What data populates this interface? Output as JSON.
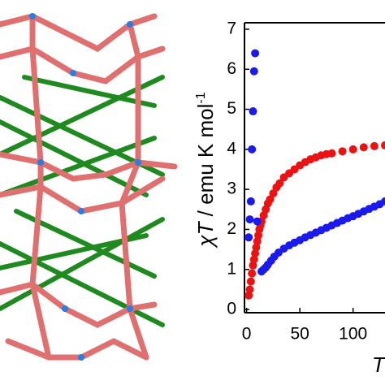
{
  "chart_data": {
    "type": "scatter",
    "ylabel": {
      "symbol": "χT",
      "text": " / emu K mol",
      "sup": "-1"
    },
    "xlabel": "T",
    "xlim": [
      -2,
      130
    ],
    "ylim": [
      0,
      7
    ],
    "xticks": [
      0,
      50,
      100
    ],
    "yticks": [
      0,
      1,
      2,
      3,
      4,
      5,
      6,
      7
    ],
    "series": [
      {
        "color": "#ee1111",
        "x": [
          2,
          3,
          4,
          5,
          6,
          7,
          8,
          9,
          10,
          11,
          12,
          13,
          14,
          16,
          18,
          20,
          22,
          25,
          28,
          31,
          35,
          40,
          45,
          50,
          55,
          60,
          65,
          70,
          75,
          80,
          90,
          100,
          110,
          120,
          130
        ],
        "values": [
          0.35,
          0.5,
          0.7,
          0.9,
          1.1,
          1.25,
          1.4,
          1.55,
          1.7,
          1.85,
          2.0,
          2.1,
          2.2,
          2.35,
          2.5,
          2.65,
          2.75,
          2.9,
          3.05,
          3.15,
          3.3,
          3.4,
          3.5,
          3.6,
          3.68,
          3.75,
          3.8,
          3.85,
          3.88,
          3.9,
          3.95,
          4.0,
          4.05,
          4.08,
          4.1
        ]
      },
      {
        "color": "#1a1aee",
        "x": [
          2,
          3,
          4,
          5,
          6,
          7,
          8,
          10,
          14,
          16,
          18,
          20,
          23,
          26,
          30,
          35,
          40,
          45,
          50,
          55,
          60,
          65,
          70,
          75,
          80,
          85,
          90,
          95,
          100,
          105,
          110,
          115,
          120,
          125,
          130
        ],
        "values": [
          1.8,
          2.25,
          2.7,
          4.0,
          4.95,
          5.95,
          6.4,
          2.2,
          0.95,
          1.0,
          1.05,
          1.12,
          1.22,
          1.32,
          1.42,
          1.52,
          1.6,
          1.67,
          1.73,
          1.8,
          1.86,
          1.92,
          1.98,
          2.04,
          2.1,
          2.16,
          2.22,
          2.28,
          2.33,
          2.39,
          2.45,
          2.51,
          2.57,
          2.63,
          2.7
        ]
      }
    ]
  }
}
